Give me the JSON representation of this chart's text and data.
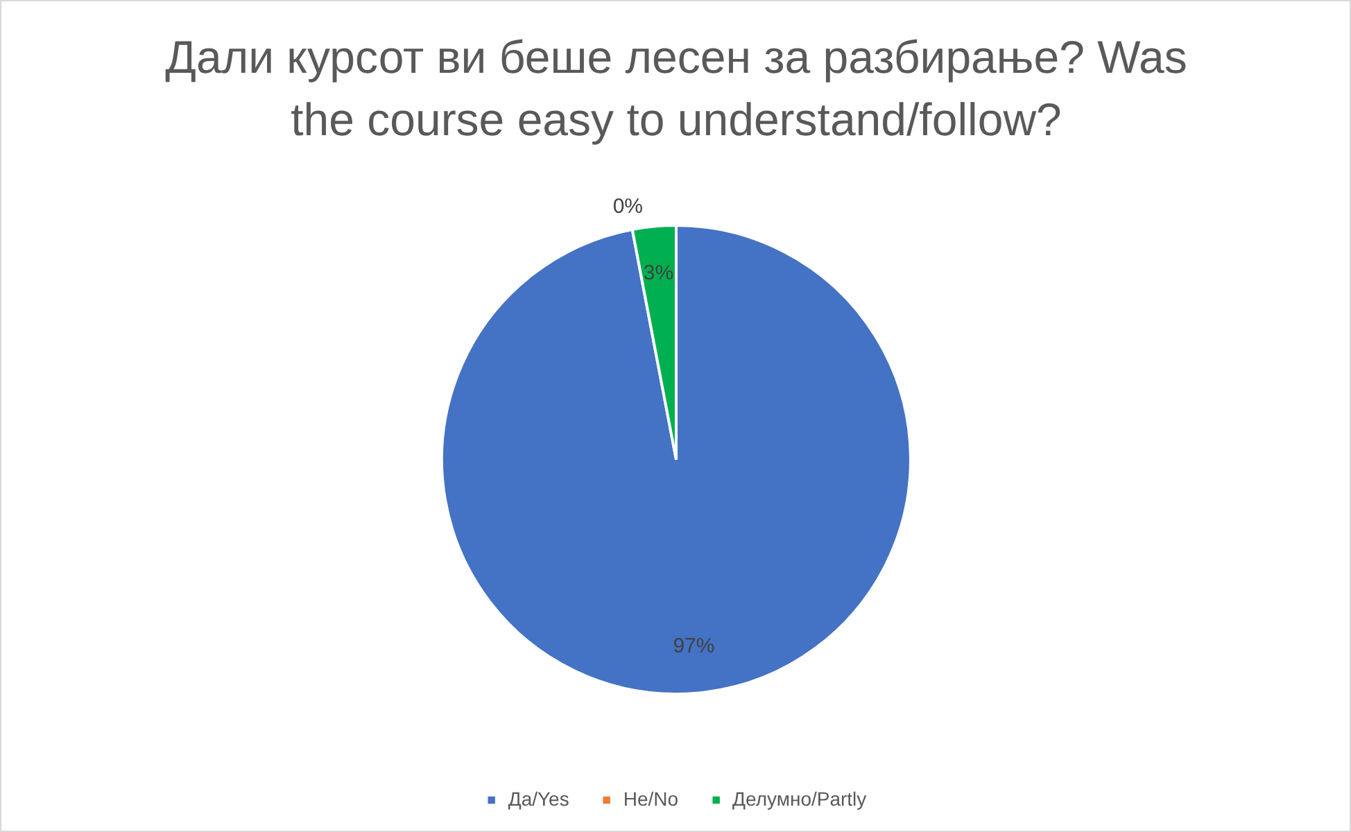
{
  "chart_data": {
    "type": "pie",
    "title": "Дали курсот ви беше лесен за разбирање? Was the course easy to understand/follow?",
    "categories": [
      "Да/Yes",
      "Не/No",
      "Делумно/Partly"
    ],
    "values": [
      97,
      0,
      3
    ],
    "colors": [
      "#4472c4",
      "#ed7d31",
      "#00b050"
    ],
    "value_labels": [
      "97%",
      "0%",
      "3%"
    ],
    "legend": "bottom"
  }
}
